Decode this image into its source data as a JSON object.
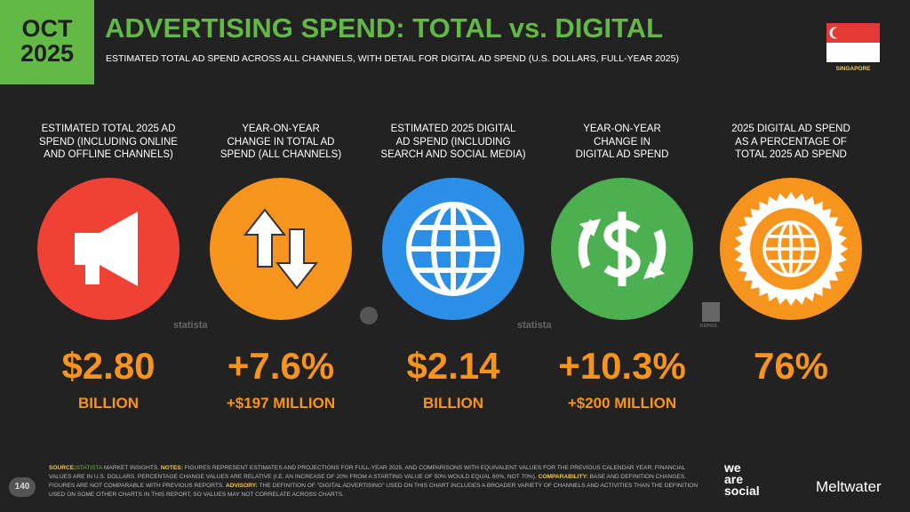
{
  "header": {
    "date_month": "OCT",
    "date_year": "2025",
    "title": "ADVERTISING SPEND: TOTAL vs. DIGITAL",
    "subtitle": "ESTIMATED TOTAL AD SPEND ACROSS ALL CHANNELS, WITH DETAIL FOR DIGITAL AD SPEND (U.S. DOLLARS, FULL-YEAR 2025)",
    "country": "SINGAPORE"
  },
  "stats": [
    {
      "label_lines": [
        "ESTIMATED TOTAL 2025 AD",
        "SPEND (INCLUDING ONLINE",
        "AND OFFLINE CHANNELS)"
      ],
      "value": "$2.80",
      "sublabel": "BILLION"
    },
    {
      "label_lines": [
        "YEAR-ON-YEAR",
        "CHANGE IN TOTAL AD",
        "SPEND (ALL CHANNELS)"
      ],
      "value": "+7.6%",
      "sublabel": "+$197 MILLION"
    },
    {
      "label_lines": [
        "ESTIMATED 2025 DIGITAL",
        "AD SPEND (INCLUDING",
        "SEARCH AND SOCIAL MEDIA)"
      ],
      "value": "$2.14",
      "sublabel": "BILLION"
    },
    {
      "label_lines": [
        "YEAR-ON-YEAR",
        "CHANGE IN",
        "DIGITAL AD SPEND"
      ],
      "value": "+10.3%",
      "sublabel": "+$200 MILLION"
    },
    {
      "label_lines": [
        "2025 DIGITAL AD SPEND",
        "AS A PERCENTAGE OF",
        "TOTAL 2025 AD SPEND"
      ],
      "value": "76%",
      "sublabel": ""
    }
  ],
  "watermarks": [
    "statista",
    "statista",
    "KEPIOS"
  ],
  "footer": {
    "page": "140",
    "notes": [
      "SOURCE:",
      "STATISTA",
      " MARKET INSIGHTS. ",
      "NOTES:",
      " FIGURES REPRESENT ESTIMATES AND PROJECTIONS FOR FULL-YEAR 2025, AND COMPARISONS WITH EQUIVALENT VALUES FOR THE PREVIOUS CALENDAR YEAR. FINANCIAL VALUES ARE IN U.S. DOLLARS. PERCENTAGE CHANGE VALUES ARE RELATIVE (I.E. AN INCREASE OF 20% FROM A STARTING VALUE OF 50% WOULD EQUAL 60%, NOT 70%). ",
      "COMPARABILITY:",
      " BASE AND DEFINITION CHANGES. FIGURES ARE NOT COMPARABLE WITH PREVIOUS REPORTS. ",
      "ADVISORY:",
      " THE DEFINITION OF \"DIGITAL ADVERTISING\" USED ON THIS CHART INCLUDES A BROADER VARIETY OF CHANNELS AND ACTIVITIES THAN THE DEFINITION USED ON SOME OTHER CHARTS IN THIS REPORT, SO VALUES MAY NOT CORRELATE ACROSS CHARTS."
    ],
    "brand1_lines": [
      "we",
      "are",
      "social"
    ],
    "brand2": "Meltwater"
  }
}
